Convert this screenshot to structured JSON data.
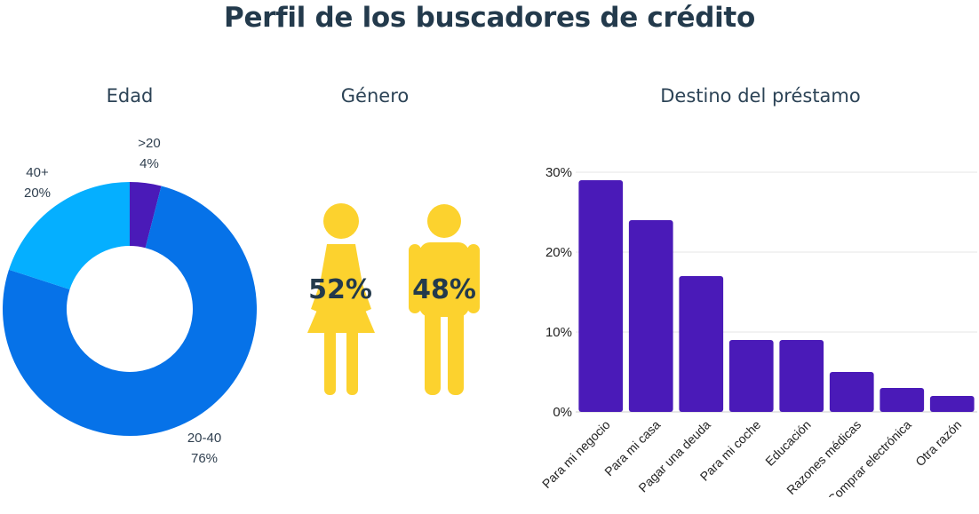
{
  "title": "Perfil de los buscadores de crédito",
  "chart_data": [
    {
      "type": "pie",
      "title": "Edad",
      "slices": [
        {
          "label": ">20",
          "value": 4,
          "pct_label": "4%",
          "color": "#4a1ab8"
        },
        {
          "label": "20-40",
          "value": 76,
          "pct_label": "76%",
          "color": "#0672e8"
        },
        {
          "label": "40+",
          "value": 20,
          "pct_label": "20%",
          "color": "#05afff"
        }
      ]
    },
    {
      "type": "pictogram",
      "title": "Género",
      "items": [
        {
          "figure": "female",
          "value": 52,
          "label": "52%",
          "color": "#fcd22e"
        },
        {
          "figure": "male",
          "value": 48,
          "label": "48%",
          "color": "#fcd22e"
        }
      ]
    },
    {
      "type": "bar",
      "title": "Destino del préstamo",
      "categories": [
        "Para mi negocio",
        "Para mi casa",
        "Pagar una deuda",
        "Para mi coche",
        "Educación",
        "Razones médicas",
        "Comprar electrónica",
        "Otra razón"
      ],
      "values": [
        29,
        24,
        17,
        9,
        9,
        5,
        3,
        2
      ],
      "ylim": [
        0,
        30
      ],
      "yticks": [
        "0%",
        "10%",
        "20%",
        "30%"
      ],
      "bar_color": "#4a1ab8",
      "grid": true
    }
  ]
}
